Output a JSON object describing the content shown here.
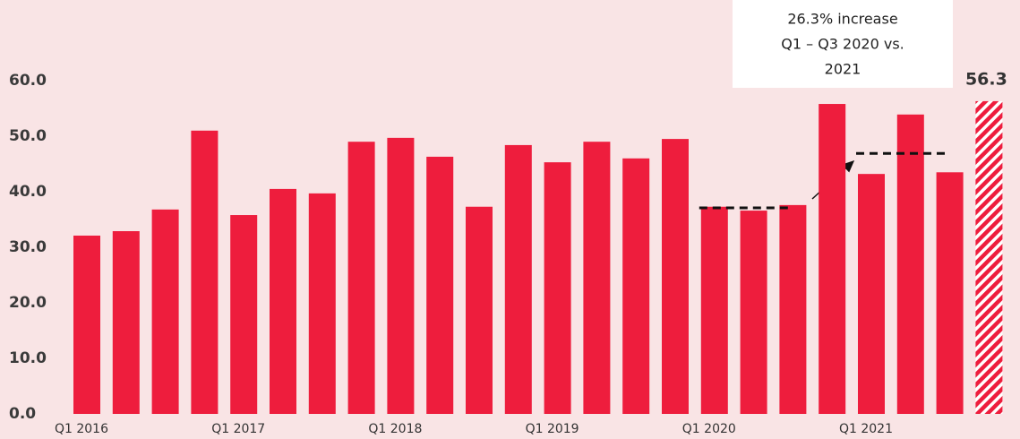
{
  "chart_data": {
    "type": "bar",
    "categories": [
      "Q1 2016",
      null,
      null,
      null,
      "Q1 2017",
      null,
      null,
      null,
      "Q1 2018",
      null,
      null,
      null,
      "Q1 2019",
      null,
      null,
      null,
      "Q1 2020",
      null,
      null,
      null,
      "Q1 2021",
      null,
      null,
      null
    ],
    "values": [
      32.1,
      32.9,
      36.8,
      51.0,
      35.8,
      40.5,
      39.7,
      49.0,
      49.7,
      46.3,
      37.3,
      48.4,
      45.3,
      49.0,
      46.0,
      49.5,
      37.3,
      36.6,
      37.6,
      55.8,
      43.2,
      53.9,
      43.5,
      56.3
    ],
    "color": "#ee1d3d",
    "highlight": {
      "index": 23,
      "pattern": "hatch"
    },
    "ylim": [
      0,
      60
    ],
    "yticks": [
      {
        "value": 0,
        "label": "0.0"
      },
      {
        "value": 10,
        "label": "10.0"
      },
      {
        "value": 20,
        "label": "20.0"
      },
      {
        "value": 30,
        "label": "30.0"
      },
      {
        "value": 40,
        "label": "40.0"
      },
      {
        "value": 50,
        "label": "50.0"
      },
      {
        "value": 60,
        "label": "60.0"
      }
    ],
    "grid": false,
    "reference_lines": [
      {
        "value": 37.1,
        "from": 16,
        "to": 18
      },
      {
        "value": 46.9,
        "from": 20,
        "to": 22
      }
    ],
    "annotation": [
      "26.3% increase",
      "Q1 – Q3 2020 vs.",
      "2021"
    ]
  }
}
